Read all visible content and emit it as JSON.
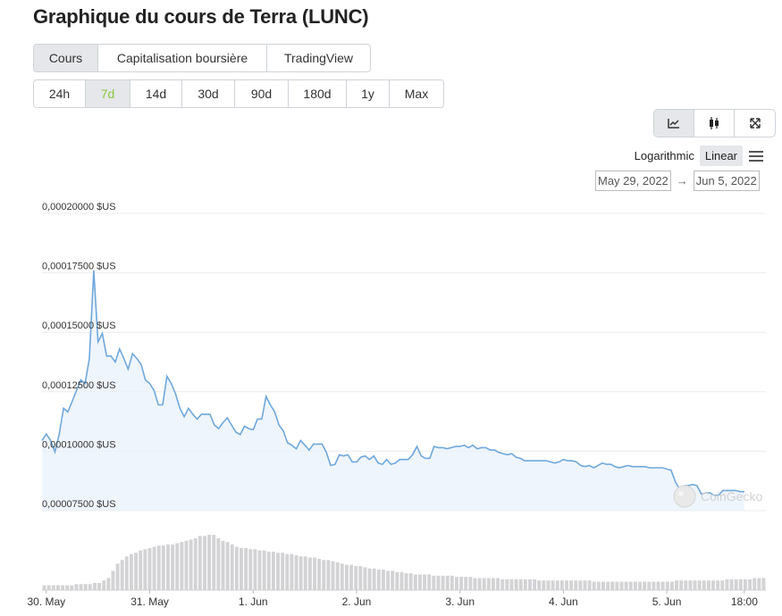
{
  "page": {
    "title": "Graphique du cours de Terra (LUNC)"
  },
  "main_tabs": [
    {
      "label": "Cours",
      "active": true
    },
    {
      "label": "Capitalisation boursière",
      "active": false
    },
    {
      "label": "TradingView",
      "active": false
    }
  ],
  "range_tabs": [
    {
      "label": "24h",
      "active": false
    },
    {
      "label": "7d",
      "active": true
    },
    {
      "label": "14d",
      "active": false
    },
    {
      "label": "30d",
      "active": false
    },
    {
      "label": "90d",
      "active": false
    },
    {
      "label": "180d",
      "active": false
    },
    {
      "label": "1y",
      "active": false
    },
    {
      "label": "Max",
      "active": false
    }
  ],
  "view_tabs": [
    {
      "icon": "line-chart-icon",
      "active": true
    },
    {
      "icon": "candlestick-icon",
      "active": false
    },
    {
      "icon": "expand-icon",
      "active": false
    }
  ],
  "scale": {
    "log_label": "Logarithmic",
    "linear_label": "Linear",
    "active": "linear"
  },
  "date_range": {
    "from": "May 29, 2022",
    "to": "Jun 5, 2022"
  },
  "watermark": "CoinGecko",
  "colors": {
    "line": "#6fa8dc",
    "area": "#eaf2fb",
    "volume": "#d3d3d6",
    "grid": "#ececec",
    "active_range": "#8dc63f"
  },
  "chart_data": {
    "type": "line",
    "currency_suffix": "$US",
    "y_ticks": [
      {
        "value": 7.5e-05,
        "label": "0,00007500 $US"
      },
      {
        "value": 0.0001,
        "label": "0,00010000 $US"
      },
      {
        "value": 0.000125,
        "label": "0,00012500 $US"
      },
      {
        "value": 0.00015,
        "label": "0,00015000 $US"
      },
      {
        "value": 0.000175,
        "label": "0,00017500 $US"
      },
      {
        "value": 0.0002,
        "label": "0,00020000 $US"
      }
    ],
    "ylim": [
      7.5e-05,
      0.0002
    ],
    "x_range": [
      "2022-05-29T23:00",
      "2022-06-05T23:00"
    ],
    "x_ticks": [
      {
        "t": "2022-05-30T00:00",
        "label": "30. May"
      },
      {
        "t": "2022-05-31T00:00",
        "label": "31. May"
      },
      {
        "t": "2022-06-01T00:00",
        "label": "1. Jun"
      },
      {
        "t": "2022-06-02T00:00",
        "label": "2. Jun"
      },
      {
        "t": "2022-06-03T00:00",
        "label": "3. Jun"
      },
      {
        "t": "2022-06-04T00:00",
        "label": "4. Jun"
      },
      {
        "t": "2022-06-05T00:00",
        "label": "5. Jun"
      },
      {
        "t": "2022-06-05T18:00",
        "label": "18:00"
      }
    ],
    "series": [
      {
        "points": [
          [
            "2022-05-29T23:00",
            0.0001045
          ],
          [
            "2022-05-30T00:00",
            0.0001072
          ],
          [
            "2022-05-30T01:00",
            0.0001045
          ],
          [
            "2022-05-30T02:00",
            9.97e-05
          ],
          [
            "2022-05-30T03:00",
            0.0001072
          ],
          [
            "2022-05-30T04:00",
            0.000118
          ],
          [
            "2022-05-30T05:00",
            0.0001165
          ],
          [
            "2022-05-30T06:00",
            0.000121
          ],
          [
            "2022-05-30T07:00",
            0.0001255
          ],
          [
            "2022-05-30T08:00",
            0.00013
          ],
          [
            "2022-05-30T09:00",
            0.0001285
          ],
          [
            "2022-05-30T10:00",
            0.000139
          ],
          [
            "2022-05-30T11:00",
            0.000176
          ],
          [
            "2022-05-30T12:00",
            0.000146
          ],
          [
            "2022-05-30T13:00",
            0.0001495
          ],
          [
            "2022-05-30T14:00",
            0.00014
          ],
          [
            "2022-05-30T15:00",
            0.00014
          ],
          [
            "2022-05-30T16:00",
            0.0001375
          ],
          [
            "2022-05-30T17:00",
            0.000143
          ],
          [
            "2022-05-30T18:00",
            0.000139
          ],
          [
            "2022-05-30T19:00",
            0.0001345
          ],
          [
            "2022-05-30T20:00",
            0.000141
          ],
          [
            "2022-05-30T21:00",
            0.000139
          ],
          [
            "2022-05-30T22:00",
            0.0001365
          ],
          [
            "2022-05-30T23:00",
            0.00013
          ],
          [
            "2022-05-31T00:00",
            0.0001285
          ],
          [
            "2022-05-31T01:00",
            0.0001255
          ],
          [
            "2022-05-31T02:00",
            0.0001195
          ],
          [
            "2022-05-31T03:00",
            0.0001195
          ],
          [
            "2022-05-31T04:00",
            0.0001315
          ],
          [
            "2022-05-31T05:00",
            0.0001285
          ],
          [
            "2022-05-31T06:00",
            0.000124
          ],
          [
            "2022-05-31T07:00",
            0.000118
          ],
          [
            "2022-05-31T08:00",
            0.0001145
          ],
          [
            "2022-05-31T09:00",
            0.000118
          ],
          [
            "2022-05-31T10:00",
            0.0001155
          ],
          [
            "2022-05-31T11:00",
            0.0001135
          ],
          [
            "2022-05-31T12:00",
            0.0001155
          ],
          [
            "2022-05-31T13:00",
            0.0001155
          ],
          [
            "2022-05-31T14:00",
            0.0001155
          ],
          [
            "2022-05-31T15:00",
            0.000111
          ],
          [
            "2022-05-31T16:00",
            0.0001095
          ],
          [
            "2022-05-31T17:00",
            0.000112
          ],
          [
            "2022-05-31T18:00",
            0.000114
          ],
          [
            "2022-05-31T19:00",
            0.000111
          ],
          [
            "2022-05-31T20:00",
            0.000108
          ],
          [
            "2022-05-31T21:00",
            0.000107
          ],
          [
            "2022-05-31T22:00",
            0.0001105
          ],
          [
            "2022-05-31T23:00",
            0.0001095
          ],
          [
            "2022-06-01T00:00",
            0.000109
          ],
          [
            "2022-06-01T01:00",
            0.0001135
          ],
          [
            "2022-06-01T02:00",
            0.0001135
          ],
          [
            "2022-06-01T03:00",
            0.000123
          ],
          [
            "2022-06-01T04:00",
            0.0001195
          ],
          [
            "2022-06-01T05:00",
            0.0001165
          ],
          [
            "2022-06-01T06:00",
            0.000111
          ],
          [
            "2022-06-01T07:00",
            0.0001085
          ],
          [
            "2022-06-01T08:00",
            0.0001035
          ],
          [
            "2022-06-01T09:00",
            0.0001025
          ],
          [
            "2022-06-01T10:00",
            0.000101
          ],
          [
            "2022-06-01T11:00",
            0.0001045
          ],
          [
            "2022-06-01T12:00",
            0.0001025
          ],
          [
            "2022-06-01T13:00",
            0.0001005
          ],
          [
            "2022-06-01T14:00",
            0.000103
          ],
          [
            "2022-06-01T15:00",
            0.000103
          ],
          [
            "2022-06-01T16:00",
            0.000103
          ],
          [
            "2022-06-01T17:00",
            9.95e-05
          ],
          [
            "2022-06-01T18:00",
            9.4e-05
          ],
          [
            "2022-06-01T19:00",
            9.45e-05
          ],
          [
            "2022-06-01T20:00",
            9.85e-05
          ],
          [
            "2022-06-01T21:00",
            9.8e-05
          ],
          [
            "2022-06-01T22:00",
            9.85e-05
          ],
          [
            "2022-06-01T23:00",
            9.55e-05
          ],
          [
            "2022-06-02T00:00",
            9.55e-05
          ],
          [
            "2022-06-02T01:00",
            9.75e-05
          ],
          [
            "2022-06-02T02:00",
            9.8e-05
          ],
          [
            "2022-06-02T03:00",
            9.65e-05
          ],
          [
            "2022-06-02T04:00",
            9.8e-05
          ],
          [
            "2022-06-02T05:00",
            9.5e-05
          ],
          [
            "2022-06-02T06:00",
            9.45e-05
          ],
          [
            "2022-06-02T07:00",
            9.65e-05
          ],
          [
            "2022-06-02T08:00",
            9.45e-05
          ],
          [
            "2022-06-02T09:00",
            9.5e-05
          ],
          [
            "2022-06-02T10:00",
            9.65e-05
          ],
          [
            "2022-06-02T11:00",
            9.65e-05
          ],
          [
            "2022-06-02T12:00",
            9.65e-05
          ],
          [
            "2022-06-02T13:00",
            9.85e-05
          ],
          [
            "2022-06-02T14:00",
            0.000102
          ],
          [
            "2022-06-02T15:00",
            9.8e-05
          ],
          [
            "2022-06-02T16:00",
            9.7e-05
          ],
          [
            "2022-06-02T17:00",
            9.7e-05
          ],
          [
            "2022-06-02T18:00",
            0.000102
          ],
          [
            "2022-06-02T19:00",
            0.0001015
          ],
          [
            "2022-06-02T20:00",
            0.0001015
          ],
          [
            "2022-06-02T21:00",
            0.000101
          ],
          [
            "2022-06-02T22:00",
            0.0001015
          ],
          [
            "2022-06-02T23:00",
            0.000102
          ],
          [
            "2022-06-03T00:00",
            0.000102
          ],
          [
            "2022-06-03T01:00",
            0.0001025
          ],
          [
            "2022-06-03T02:00",
            0.0001015
          ],
          [
            "2022-06-03T03:00",
            0.0001025
          ],
          [
            "2022-06-03T04:00",
            0.000101
          ],
          [
            "2022-06-03T05:00",
            0.0001015
          ],
          [
            "2022-06-03T06:00",
            0.0001015
          ],
          [
            "2022-06-03T07:00",
            0.0001005
          ],
          [
            "2022-06-03T08:00",
            0.0001005
          ],
          [
            "2022-06-03T09:00",
            9.95e-05
          ],
          [
            "2022-06-03T10:00",
            9.9e-05
          ],
          [
            "2022-06-03T11:00",
            9.85e-05
          ],
          [
            "2022-06-03T12:00",
            9.9e-05
          ],
          [
            "2022-06-03T13:00",
            9.75e-05
          ],
          [
            "2022-06-03T14:00",
            9.7e-05
          ],
          [
            "2022-06-03T15:00",
            9.6e-05
          ],
          [
            "2022-06-03T16:00",
            9.6e-05
          ],
          [
            "2022-06-03T17:00",
            9.6e-05
          ],
          [
            "2022-06-03T18:00",
            9.6e-05
          ],
          [
            "2022-06-03T19:00",
            9.6e-05
          ],
          [
            "2022-06-03T20:00",
            9.6e-05
          ],
          [
            "2022-06-03T21:00",
            9.55e-05
          ],
          [
            "2022-06-03T22:00",
            9.5e-05
          ],
          [
            "2022-06-03T23:00",
            9.55e-05
          ],
          [
            "2022-06-04T00:00",
            9.65e-05
          ],
          [
            "2022-06-04T01:00",
            9.6e-05
          ],
          [
            "2022-06-04T02:00",
            9.6e-05
          ],
          [
            "2022-06-04T03:00",
            9.55e-05
          ],
          [
            "2022-06-04T04:00",
            9.4e-05
          ],
          [
            "2022-06-04T05:00",
            9.35e-05
          ],
          [
            "2022-06-04T06:00",
            9.4e-05
          ],
          [
            "2022-06-04T07:00",
            9.3e-05
          ],
          [
            "2022-06-04T08:00",
            9.4e-05
          ],
          [
            "2022-06-04T09:00",
            9.5e-05
          ],
          [
            "2022-06-04T10:00",
            9.45e-05
          ],
          [
            "2022-06-04T11:00",
            9.45e-05
          ],
          [
            "2022-06-04T12:00",
            9.35e-05
          ],
          [
            "2022-06-04T13:00",
            9.3e-05
          ],
          [
            "2022-06-04T14:00",
            9.35e-05
          ],
          [
            "2022-06-04T15:00",
            9.4e-05
          ],
          [
            "2022-06-04T16:00",
            9.35e-05
          ],
          [
            "2022-06-04T17:00",
            9.35e-05
          ],
          [
            "2022-06-04T18:00",
            9.35e-05
          ],
          [
            "2022-06-04T19:00",
            9.35e-05
          ],
          [
            "2022-06-04T20:00",
            9.3e-05
          ],
          [
            "2022-06-04T21:00",
            9.3e-05
          ],
          [
            "2022-06-04T22:00",
            9.3e-05
          ],
          [
            "2022-06-04T23:00",
            9.3e-05
          ],
          [
            "2022-06-05T00:00",
            9.25e-05
          ],
          [
            "2022-06-05T01:00",
            9.2e-05
          ],
          [
            "2022-06-05T02:00",
            8.7e-05
          ],
          [
            "2022-06-05T03:00",
            8.4e-05
          ],
          [
            "2022-06-05T04:00",
            8.55e-05
          ],
          [
            "2022-06-05T05:00",
            8.55e-05
          ],
          [
            "2022-06-05T06:00",
            8.6e-05
          ],
          [
            "2022-06-05T07:00",
            8.55e-05
          ],
          [
            "2022-06-05T08:00",
            8.2e-05
          ],
          [
            "2022-06-05T09:00",
            8.25e-05
          ],
          [
            "2022-06-05T10:00",
            8.25e-05
          ],
          [
            "2022-06-05T11:00",
            8.15e-05
          ],
          [
            "2022-06-05T12:00",
            8.15e-05
          ],
          [
            "2022-06-05T13:00",
            8.35e-05
          ],
          [
            "2022-06-05T14:00",
            8.35e-05
          ],
          [
            "2022-06-05T15:00",
            8.35e-05
          ],
          [
            "2022-06-05T16:00",
            8.35e-05
          ],
          [
            "2022-06-05T17:00",
            8.3e-05
          ],
          [
            "2022-06-05T18:00",
            8.3e-05
          ]
        ]
      }
    ],
    "volume": [
      4,
      4,
      4,
      4,
      4,
      4,
      4,
      5,
      5,
      5,
      5,
      6,
      6,
      8,
      10,
      16,
      22,
      25,
      28,
      30,
      31,
      33,
      34,
      35,
      36,
      37,
      37,
      38,
      38,
      39,
      40,
      41,
      42,
      43,
      45,
      45,
      46,
      46,
      43,
      41,
      40,
      38,
      36,
      35,
      35,
      34,
      34,
      33,
      33,
      32,
      32,
      31,
      31,
      30,
      30,
      29,
      28,
      28,
      27,
      27,
      26,
      25,
      25,
      24,
      23,
      22,
      21,
      21,
      20,
      20,
      19,
      18,
      18,
      17,
      17,
      16,
      16,
      15,
      15,
      14,
      14,
      13,
      13,
      13,
      13,
      12,
      12,
      12,
      12,
      12,
      11,
      11,
      11,
      11,
      10,
      10,
      10,
      10,
      10,
      10,
      9,
      9,
      9,
      9,
      9,
      9,
      9,
      9,
      8,
      8,
      8,
      8,
      8,
      8,
      8,
      8,
      8,
      8,
      8,
      8,
      7,
      7,
      7,
      7,
      7,
      7,
      7,
      7,
      7,
      7,
      7,
      7,
      7,
      7,
      7,
      7,
      7,
      7,
      8,
      8,
      8,
      8,
      8,
      8,
      8,
      8,
      8,
      8,
      8,
      9,
      9,
      9,
      9,
      9,
      9,
      10,
      10,
      10
    ]
  }
}
